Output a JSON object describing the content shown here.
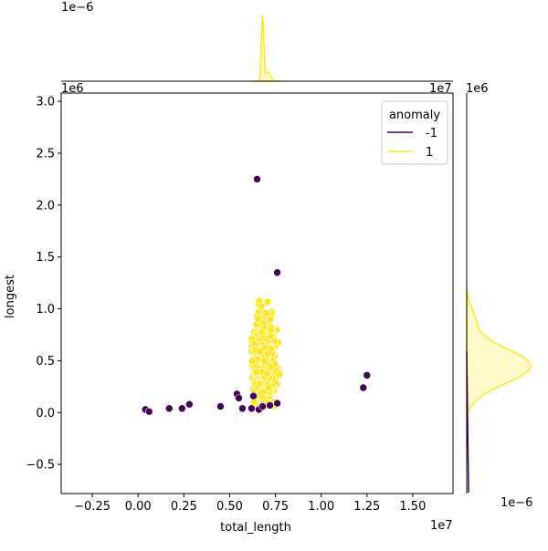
{
  "chart_data": {
    "type": "scatter",
    "xlabel": "total_length",
    "ylabel": "longest",
    "x_offset_label": "1e7",
    "y_offset_label": "1e6",
    "top_marginal_offset_label": "1e−6",
    "right_marginal_offset_label": "1e6",
    "right_marginal_x_offset_label": "1e−6",
    "top_marginal_x_offset_label": "1e7",
    "xlim": [
      -0.42,
      1.72
    ],
    "ylim": [
      -0.78,
      3.08
    ],
    "xticks": [
      {
        "value": -0.25,
        "label": "−0.25"
      },
      {
        "value": 0.0,
        "label": "0.00"
      },
      {
        "value": 0.25,
        "label": "0.25"
      },
      {
        "value": 0.5,
        "label": "0.50"
      },
      {
        "value": 0.75,
        "label": "0.75"
      },
      {
        "value": 1.0,
        "label": "1.00"
      },
      {
        "value": 1.25,
        "label": "1.25"
      },
      {
        "value": 1.5,
        "label": "1.50"
      }
    ],
    "yticks": [
      {
        "value": -0.5,
        "label": "−0.5"
      },
      {
        "value": 0.0,
        "label": "0.0"
      },
      {
        "value": 0.5,
        "label": "0.5"
      },
      {
        "value": 1.0,
        "label": "1.0"
      },
      {
        "value": 1.5,
        "label": "1.5"
      },
      {
        "value": 2.0,
        "label": "2.0"
      },
      {
        "value": 2.5,
        "label": "2.5"
      },
      {
        "value": 3.0,
        "label": "3.0"
      }
    ],
    "grid": false,
    "legend": {
      "title": "anomaly",
      "placement": "top-right"
    },
    "series": [
      {
        "name": "-1",
        "color": "#440154",
        "points": [
          [
            0.04,
            0.03
          ],
          [
            0.06,
            0.01
          ],
          [
            0.17,
            0.04
          ],
          [
            0.24,
            0.04
          ],
          [
            0.28,
            0.08
          ],
          [
            0.45,
            0.06
          ],
          [
            0.54,
            0.18
          ],
          [
            0.55,
            0.14
          ],
          [
            0.57,
            0.04
          ],
          [
            0.62,
            0.04
          ],
          [
            0.63,
            0.16
          ],
          [
            0.65,
            2.25
          ],
          [
            0.66,
            0.03
          ],
          [
            0.68,
            0.06
          ],
          [
            0.72,
            0.07
          ],
          [
            0.76,
            0.09
          ],
          [
            0.76,
            1.35
          ],
          [
            1.23,
            0.24
          ],
          [
            1.25,
            0.36
          ]
        ]
      },
      {
        "name": "1",
        "color": "#fde725",
        "cluster": {
          "x_range": [
            0.62,
            0.78
          ],
          "y_range": [
            0.06,
            1.11
          ],
          "center": [
            0.69,
            0.45
          ]
        }
      }
    ],
    "top_marginal": {
      "type": "kde",
      "series": "1",
      "peak_x": 0.68,
      "range": [
        0.62,
        0.78
      ]
    },
    "right_marginal": {
      "type": "kde",
      "series": "1",
      "peak_y": 0.45,
      "range": [
        0.02,
        1.18
      ]
    }
  }
}
